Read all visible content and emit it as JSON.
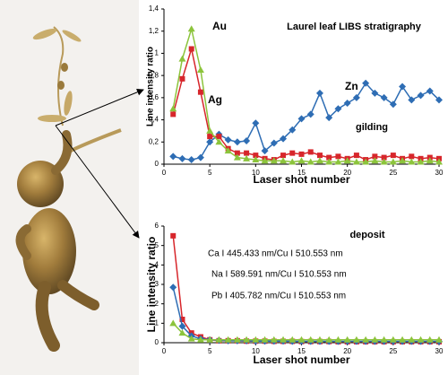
{
  "chart_data": [
    {
      "type": "line",
      "title": "Laurel leaf LIBS stratigraphy",
      "x_label": "Laser shot number",
      "y_label": "Line intensity ratio",
      "annotations": [
        "gilding"
      ],
      "x": [
        1,
        2,
        3,
        4,
        5,
        6,
        7,
        8,
        9,
        10,
        11,
        12,
        13,
        14,
        15,
        16,
        17,
        18,
        19,
        20,
        21,
        22,
        23,
        24,
        25,
        26,
        27,
        28,
        29,
        30
      ],
      "series": [
        {
          "name": "Zn",
          "color": "#2e6db4",
          "marker": "diamond",
          "values": [
            0.07,
            0.05,
            0.04,
            0.06,
            0.2,
            0.27,
            0.22,
            0.2,
            0.21,
            0.37,
            0.12,
            0.19,
            0.23,
            0.31,
            0.41,
            0.45,
            0.64,
            0.42,
            0.5,
            0.55,
            0.6,
            0.73,
            0.64,
            0.6,
            0.54,
            0.7,
            0.58,
            0.62,
            0.66,
            0.58
          ]
        },
        {
          "name": "Ag",
          "color": "#d7262b",
          "marker": "square",
          "values": [
            0.45,
            0.77,
            1.04,
            0.65,
            0.25,
            0.25,
            0.14,
            0.1,
            0.1,
            0.08,
            0.05,
            0.04,
            0.08,
            0.1,
            0.09,
            0.11,
            0.08,
            0.06,
            0.07,
            0.05,
            0.08,
            0.04,
            0.07,
            0.06,
            0.08,
            0.05,
            0.07,
            0.05,
            0.06,
            0.05
          ]
        },
        {
          "name": "Au",
          "color": "#8cc43c",
          "marker": "triangle",
          "values": [
            0.5,
            0.95,
            1.22,
            0.85,
            0.3,
            0.2,
            0.12,
            0.06,
            0.05,
            0.04,
            0.03,
            0.03,
            0.03,
            0.02,
            0.03,
            0.02,
            0.03,
            0.02,
            0.02,
            0.03,
            0.02,
            0.02,
            0.03,
            0.02,
            0.02,
            0.03,
            0.02,
            0.02,
            0.03,
            0.02
          ]
        }
      ],
      "xlim": [
        0,
        30
      ],
      "xticks": [
        0,
        5,
        10,
        15,
        20,
        25,
        30
      ],
      "ylim": [
        0,
        1.4
      ],
      "yticks": [
        0,
        {
          "value": 0.2,
          "label": "0,2"
        },
        {
          "value": 0.4,
          "label": "0,4"
        },
        {
          "value": 0.6,
          "label": "0,6"
        },
        {
          "value": 0.8,
          "label": "0,8"
        },
        1,
        {
          "value": 1.2,
          "label": "1,2"
        },
        {
          "value": 1.4,
          "label": "1,4"
        }
      ]
    },
    {
      "type": "line",
      "x_label": "Laser shot number",
      "y_label": "Line intensity ratio",
      "annotations": [
        "deposit"
      ],
      "x": [
        1,
        2,
        3,
        4,
        5,
        6,
        7,
        8,
        9,
        10,
        11,
        12,
        13,
        14,
        15,
        16,
        17,
        18,
        19,
        20,
        21,
        22,
        23,
        24,
        25,
        26,
        27,
        28,
        29,
        30
      ],
      "series": [
        {
          "name": "Ca I 445.433 nm/Cu I 510.553 nm",
          "color": "#d7262b",
          "marker": "square",
          "values": [
            5.5,
            1.2,
            0.5,
            0.3,
            0.15,
            0.1,
            0.1,
            0.1,
            0.08,
            0.08,
            0.08,
            0.07,
            0.07,
            0.07,
            0.06,
            0.06,
            0.06,
            0.06,
            0.05,
            0.05,
            0.05,
            0.05,
            0.05,
            0.05,
            0.05,
            0.05,
            0.05,
            0.05,
            0.05,
            0.05
          ]
        },
        {
          "name": "Na I 589.591 nm/Cu I 510.553 nm",
          "color": "#2e6db4",
          "marker": "diamond",
          "values": [
            2.85,
            0.85,
            0.35,
            0.2,
            0.15,
            0.12,
            0.1,
            0.1,
            0.1,
            0.08,
            0.08,
            0.08,
            0.08,
            0.07,
            0.07,
            0.07,
            0.07,
            0.07,
            0.07,
            0.07,
            0.07,
            0.07,
            0.07,
            0.07,
            0.07,
            0.07,
            0.07,
            0.07,
            0.07,
            0.07
          ]
        },
        {
          "name": "Pb I 405.782 nm/Cu I 510.553 nm",
          "color": "#8cc43c",
          "marker": "triangle",
          "values": [
            1.0,
            0.5,
            0.2,
            0.15,
            0.15,
            0.15,
            0.15,
            0.15,
            0.15,
            0.15,
            0.15,
            0.15,
            0.15,
            0.15,
            0.15,
            0.15,
            0.15,
            0.15,
            0.15,
            0.15,
            0.15,
            0.15,
            0.15,
            0.15,
            0.15,
            0.15,
            0.15,
            0.15,
            0.15,
            0.15
          ]
        }
      ],
      "xlim": [
        0,
        30
      ],
      "xticks": [
        0,
        5,
        10,
        15,
        20,
        25,
        30
      ],
      "ylim": [
        0,
        6
      ],
      "yticks": [
        0,
        1,
        2,
        3,
        4,
        5,
        6
      ]
    }
  ]
}
